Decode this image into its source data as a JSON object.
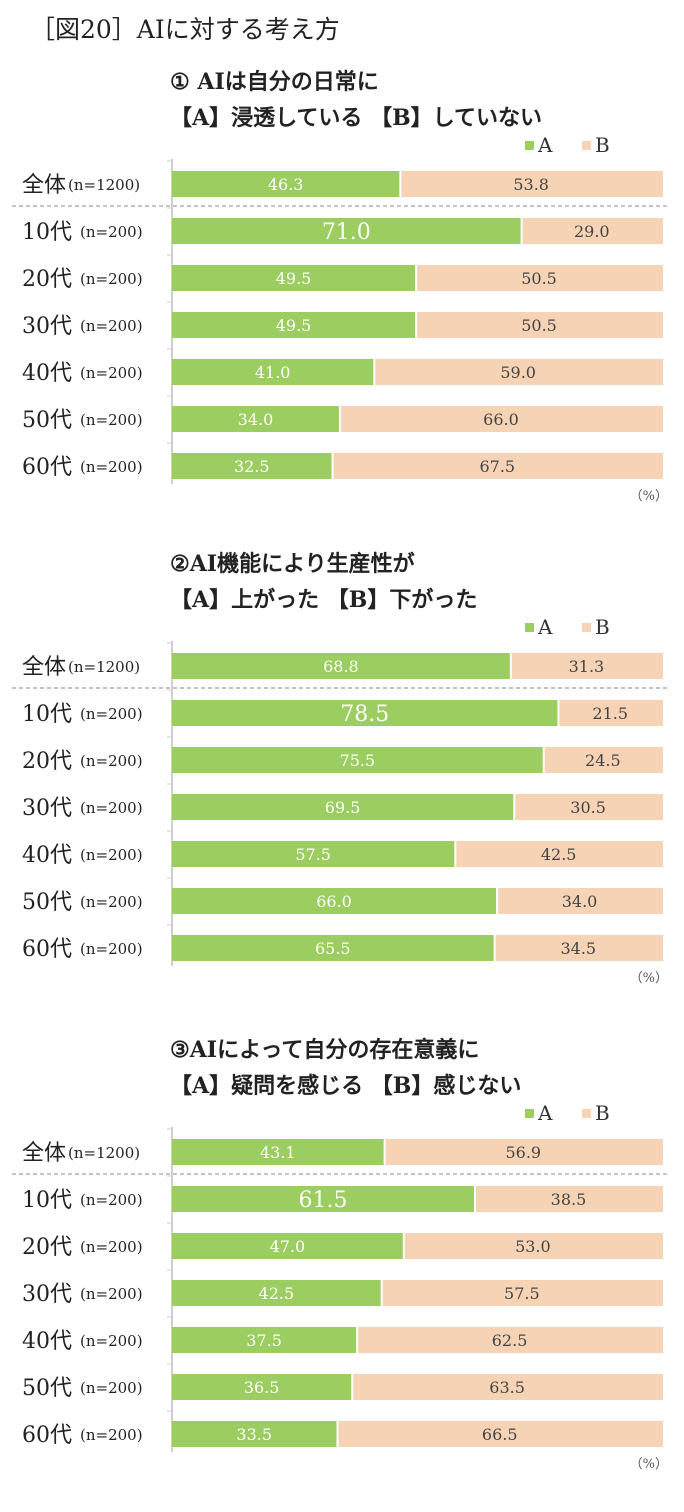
{
  "figure_title": "［図20］AIに対する考え方",
  "legend": {
    "a": "A",
    "b": "B"
  },
  "unit_label": "（%）",
  "colors": {
    "a": "#9ccd60",
    "b": "#f6d3b4"
  },
  "panels": [
    {
      "title_line1": "① AIは自分の日常に",
      "title_line2": "【A】浸透している 【B】していない"
    },
    {
      "title_line1": "②AI機能により生産性が",
      "title_line2": "【A】上がった 【B】下がった"
    },
    {
      "title_line1": "③AIによって自分の存在意義に",
      "title_line2": "【A】疑問を感じる 【B】感じない"
    }
  ],
  "chart_data": [
    {
      "type": "bar",
      "stacked": true,
      "orientation": "horizontal",
      "categories": [
        "全体",
        "10代",
        "20代",
        "30代",
        "40代",
        "50代",
        "60代"
      ],
      "sample_sizes": [
        "(n=1200)",
        "(n=200)",
        "(n=200)",
        "(n=200)",
        "(n=200)",
        "(n=200)",
        "(n=200)"
      ],
      "series": [
        {
          "name": "A",
          "values": [
            46.3,
            71.0,
            49.5,
            49.5,
            41.0,
            34.0,
            32.5
          ]
        },
        {
          "name": "B",
          "values": [
            53.8,
            29.0,
            50.5,
            50.5,
            59.0,
            66.0,
            67.5
          ]
        }
      ],
      "xlim": [
        0,
        100
      ],
      "highlight_max": true
    },
    {
      "type": "bar",
      "stacked": true,
      "orientation": "horizontal",
      "categories": [
        "全体",
        "10代",
        "20代",
        "30代",
        "40代",
        "50代",
        "60代"
      ],
      "sample_sizes": [
        "(n=1200)",
        "(n=200)",
        "(n=200)",
        "(n=200)",
        "(n=200)",
        "(n=200)",
        "(n=200)"
      ],
      "series": [
        {
          "name": "A",
          "values": [
            68.8,
            78.5,
            75.5,
            69.5,
            57.5,
            66.0,
            65.5
          ]
        },
        {
          "name": "B",
          "values": [
            31.3,
            21.5,
            24.5,
            30.5,
            42.5,
            34.0,
            34.5
          ]
        }
      ],
      "xlim": [
        0,
        100
      ],
      "highlight_max": true
    },
    {
      "type": "bar",
      "stacked": true,
      "orientation": "horizontal",
      "categories": [
        "全体",
        "10代",
        "20代",
        "30代",
        "40代",
        "50代",
        "60代"
      ],
      "sample_sizes": [
        "(n=1200)",
        "(n=200)",
        "(n=200)",
        "(n=200)",
        "(n=200)",
        "(n=200)",
        "(n=200)"
      ],
      "series": [
        {
          "name": "A",
          "values": [
            43.1,
            61.5,
            47.0,
            42.5,
            37.5,
            36.5,
            33.5
          ]
        },
        {
          "name": "B",
          "values": [
            56.9,
            38.5,
            53.0,
            57.5,
            62.5,
            63.5,
            66.5
          ]
        }
      ],
      "xlim": [
        0,
        100
      ],
      "highlight_max": true
    }
  ]
}
